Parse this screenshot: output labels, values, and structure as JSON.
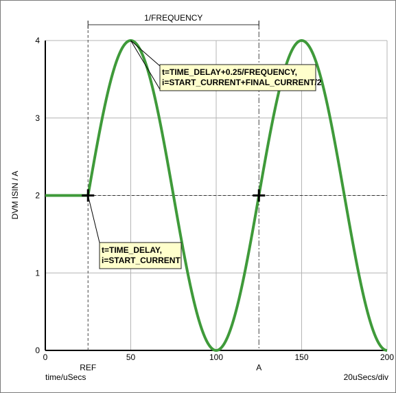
{
  "chart_data": {
    "type": "line",
    "ylabel": "DVM ISIN / A",
    "xlabel": "time/uSecs",
    "scale_label": "20uSecs/div",
    "xlim": [
      0,
      200
    ],
    "ylim": [
      0,
      4
    ],
    "x_ticks": [
      0,
      50,
      100,
      150,
      200
    ],
    "y_ticks": [
      0,
      1,
      2,
      3,
      4
    ],
    "grid": true,
    "colors": {
      "curve": "#3f9a3a",
      "grid": "#b4b4b4",
      "annotation_fill": "#ffffcc"
    },
    "signal": {
      "start_current": 2,
      "amplitude": 2,
      "time_delay": 25,
      "period": 100
    },
    "markers": [
      {
        "name": "REF",
        "x": 25
      },
      {
        "name": "A",
        "x": 125
      }
    ],
    "crosshairs": [
      {
        "x": 25,
        "y": 2
      },
      {
        "x": 125,
        "y": 2
      }
    ],
    "dimension": {
      "label": "1/FREQUENCY",
      "x_start": 25,
      "x_end": 125
    },
    "annotations": [
      {
        "lines": [
          "t=TIME_DELAY+0.25/FREQUENCY,",
          "i=START_CURRENT+FINAL_CURRENT/2"
        ],
        "target_x": 50,
        "target_y": 4
      },
      {
        "lines": [
          "t=TIME_DELAY,",
          "i=START_CURRENT"
        ],
        "target_x": 25,
        "target_y": 2
      }
    ]
  }
}
